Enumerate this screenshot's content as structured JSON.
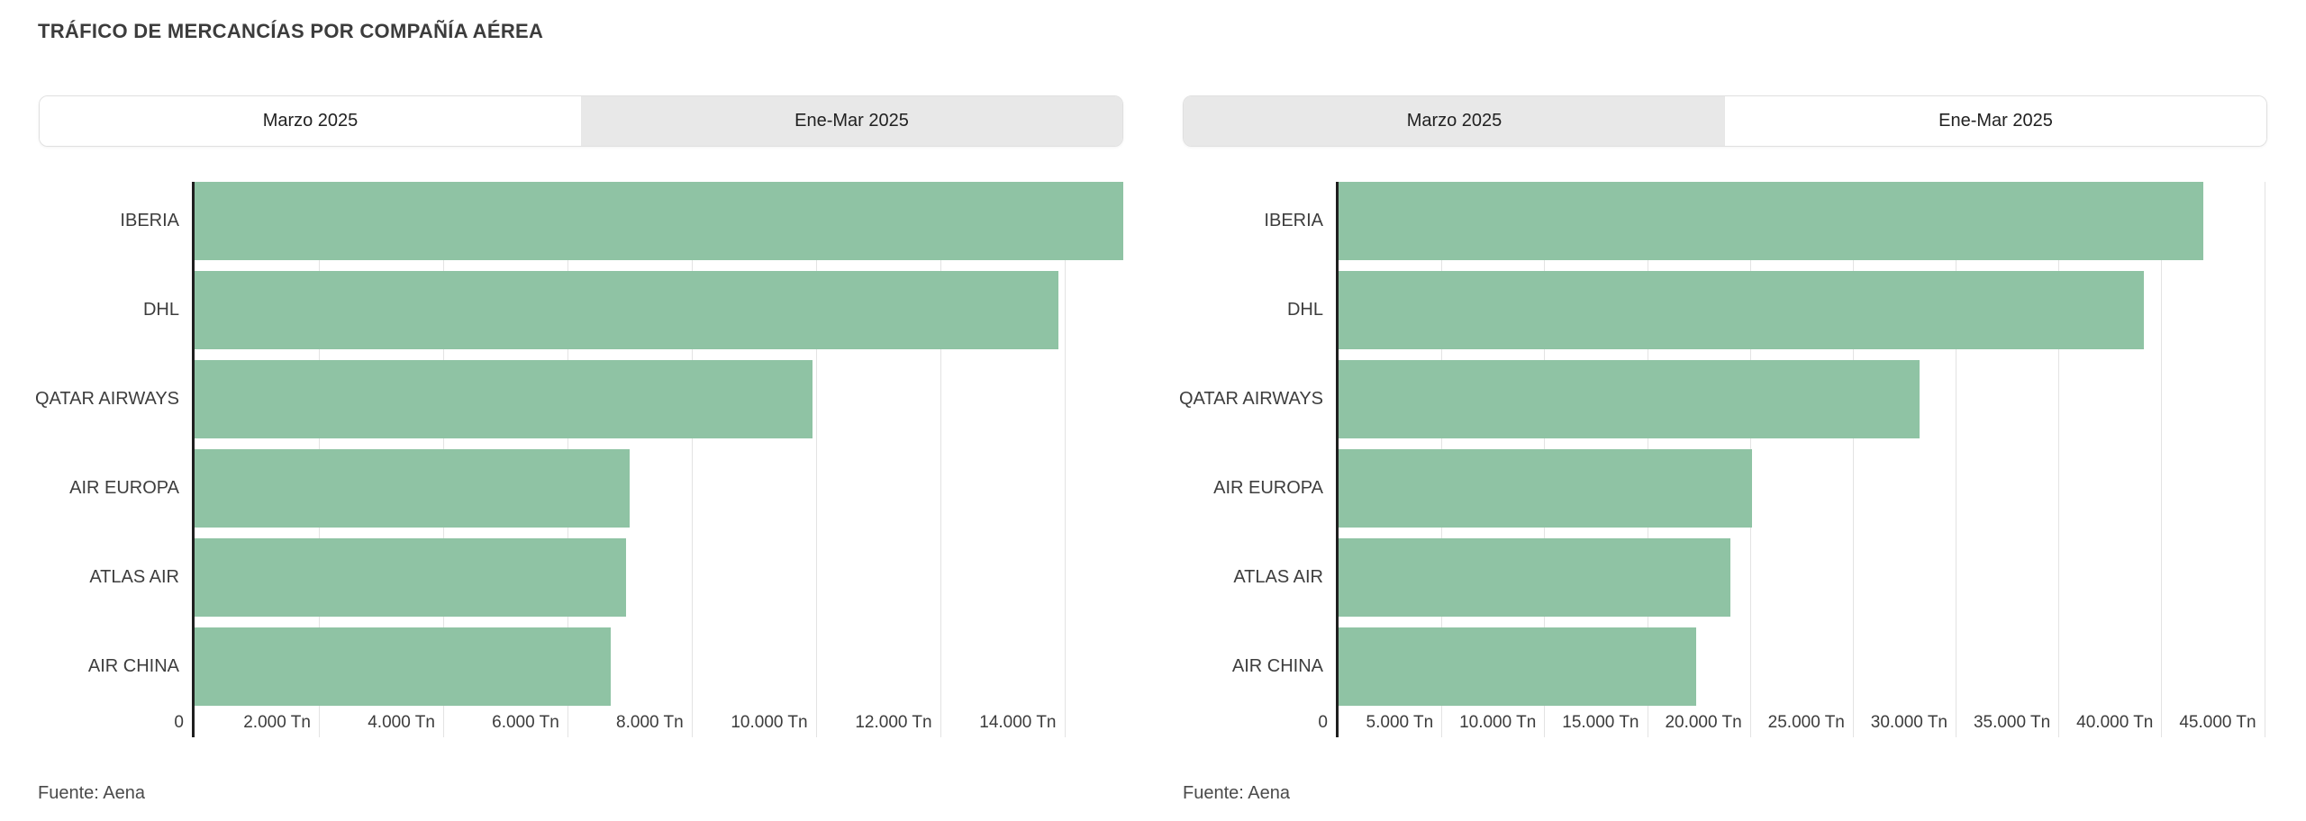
{
  "page": {
    "title": "TRÁFICO DE MERCANCÍAS POR COMPAÑÍA AÉREA",
    "source": "Fuente: Aena"
  },
  "colors": {
    "bar": "#8FC3A4",
    "axis": "#1F1F1F",
    "gridline": "#E3E3E3",
    "tab_active_bg": "#FFFFFF",
    "tab_inactive_bg": "#E8E8E8",
    "text": "#3C3C3C"
  },
  "chart_data": [
    {
      "type": "bar",
      "orientation": "horizontal",
      "period": "Marzo 2025",
      "tabs": [
        {
          "label": "Marzo 2025",
          "active": true
        },
        {
          "label": "Ene-Mar 2025",
          "active": false
        }
      ],
      "categories": [
        "IBERIA",
        "DHL",
        "QATAR AIRWAYS",
        "AIR EUROPA",
        "ATLAS AIR",
        "AIR CHINA"
      ],
      "values": [
        14950,
        13900,
        9950,
        7000,
        6950,
        6700
      ],
      "unit": "Tn",
      "x_ticks": [
        {
          "value": 0,
          "label": "0"
        },
        {
          "value": 2000,
          "label": "2.000 Tn"
        },
        {
          "value": 4000,
          "label": "4.000 Tn"
        },
        {
          "value": 6000,
          "label": "6.000 Tn"
        },
        {
          "value": 8000,
          "label": "8.000 Tn"
        },
        {
          "value": 10000,
          "label": "10.000 Tn"
        },
        {
          "value": 12000,
          "label": "12.000 Tn"
        },
        {
          "value": 14000,
          "label": "14.000 Tn"
        }
      ],
      "x_max_render": 14950,
      "grid": true,
      "legend": "none",
      "source": "Fuente: Aena"
    },
    {
      "type": "bar",
      "orientation": "horizontal",
      "period": "Ene-Mar 2025",
      "tabs": [
        {
          "label": "Marzo 2025",
          "active": false
        },
        {
          "label": "Ene-Mar 2025",
          "active": true
        }
      ],
      "categories": [
        "IBERIA",
        "DHL",
        "QATAR AIRWAYS",
        "AIR EUROPA",
        "ATLAS AIR",
        "AIR CHINA"
      ],
      "values": [
        42050,
        39150,
        28250,
        20100,
        19050,
        17400
      ],
      "unit": "Tn",
      "x_ticks": [
        {
          "value": 0,
          "label": "0"
        },
        {
          "value": 5000,
          "label": "5.000 Tn"
        },
        {
          "value": 10000,
          "label": "10.000 Tn"
        },
        {
          "value": 15000,
          "label": "15.000 Tn"
        },
        {
          "value": 20000,
          "label": "20.000 Tn"
        },
        {
          "value": 25000,
          "label": "25.000 Tn"
        },
        {
          "value": 30000,
          "label": "30.000 Tn"
        },
        {
          "value": 35000,
          "label": "35.000 Tn"
        },
        {
          "value": 40000,
          "label": "40.000 Tn"
        },
        {
          "value": 45000,
          "label": "45.000 Tn"
        }
      ],
      "x_max_render": 45150,
      "grid": true,
      "legend": "none",
      "source": "Fuente: Aena"
    }
  ]
}
